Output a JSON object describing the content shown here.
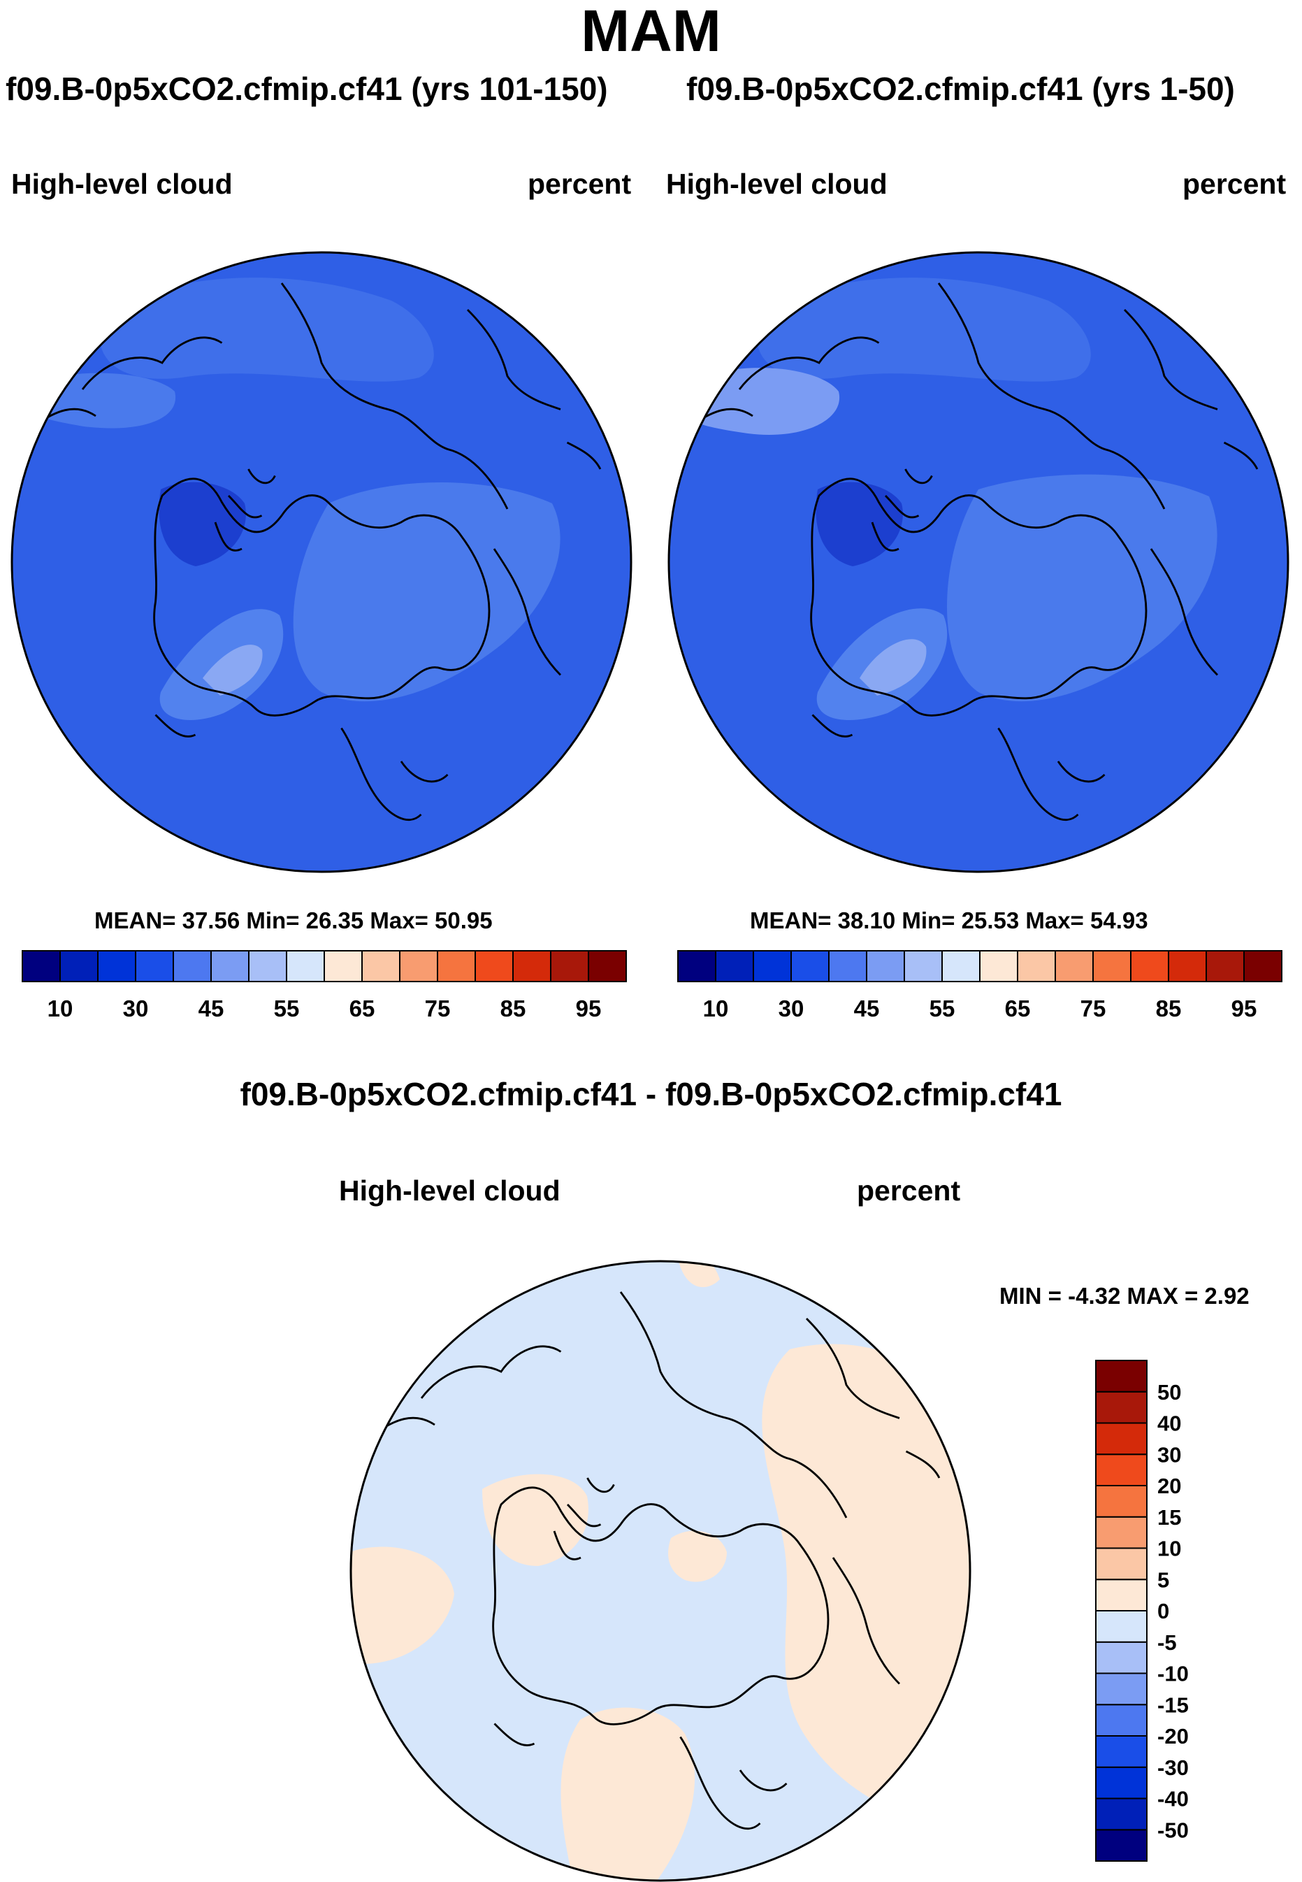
{
  "season": "MAM",
  "panels": [
    {
      "title": "f09.B-0p5xCO2.cfmip.cf41 (yrs 101-150)",
      "left_label": "High-level cloud",
      "right_label": "percent",
      "stats": "MEAN=  37.56  Min=  26.35  Max=  50.95"
    },
    {
      "title": "f09.B-0p5xCO2.cfmip.cf41 (yrs 1-50)",
      "left_label": "High-level cloud",
      "right_label": "percent",
      "stats": "MEAN=  38.10  Min=  25.53  Max=  54.93"
    }
  ],
  "diff": {
    "title": "f09.B-0p5xCO2.cfmip.cf41 - f09.B-0p5xCO2.cfmip.cf41",
    "left_label": "High-level cloud",
    "right_label": "percent",
    "stats": "MIN =  -4.32 MAX =   2.92"
  },
  "abs_colorbar": {
    "colors": [
      "#00007f",
      "#0020b8",
      "#0033d8",
      "#1a4ee8",
      "#4d78f0",
      "#7b9cf3",
      "#a8bff7",
      "#d6e6fb",
      "#fde8d6",
      "#fbc7a6",
      "#f89c70",
      "#f5743f",
      "#ef4a1c",
      "#d42a0a",
      "#a8180a",
      "#7a0000"
    ],
    "labels": [
      "10",
      "30",
      "45",
      "55",
      "65",
      "75",
      "85",
      "95"
    ]
  },
  "diff_colorbar": {
    "colors": [
      "#00007f",
      "#0020b8",
      "#0033d8",
      "#1a4ee8",
      "#4d78f0",
      "#7b9cf3",
      "#a8bff7",
      "#d6e6fb",
      "#fde8d6",
      "#fbc7a6",
      "#f89c70",
      "#f5743f",
      "#ef4a1c",
      "#d42a0a",
      "#a8180a",
      "#7a0000"
    ],
    "labels": [
      "-50",
      "-40",
      "-30",
      "-20",
      "-15",
      "-10",
      "-5",
      "0",
      "5",
      "10",
      "15",
      "20",
      "30",
      "40",
      "50"
    ]
  },
  "colors": {
    "abs_field": "#2f5fe6",
    "abs_light": "#5282ee",
    "abs_lighter": "#8aa8f3",
    "abs_dark": "#1c3fcf",
    "diff_neg": "#d6e6fb",
    "diff_pos": "#fde8d6"
  }
}
